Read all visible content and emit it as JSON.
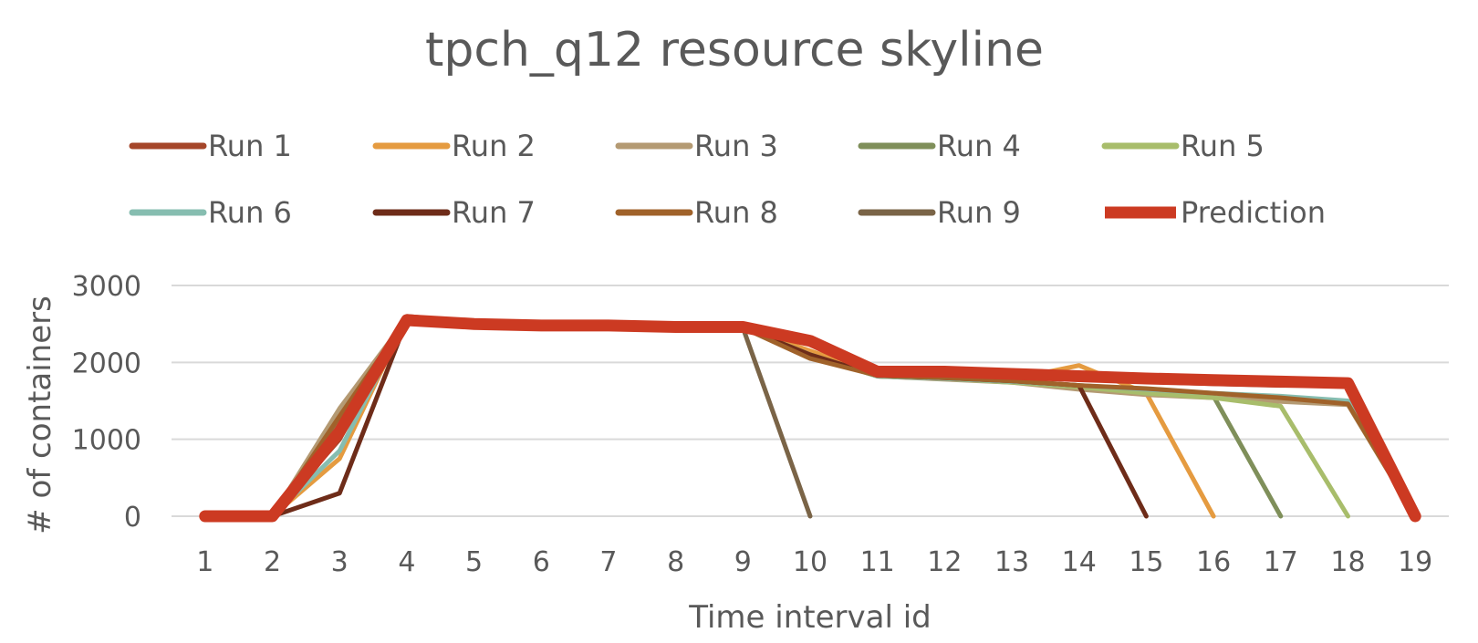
{
  "chart_data": {
    "type": "line",
    "title": "tpch_q12 resource skyline",
    "xlabel": "Time interval id",
    "ylabel": "# of containers",
    "categories": [
      "1",
      "2",
      "3",
      "4",
      "5",
      "6",
      "7",
      "8",
      "9",
      "10",
      "11",
      "12",
      "13",
      "14",
      "15",
      "16",
      "17",
      "18",
      "19"
    ],
    "yticks": [
      "0",
      "1000",
      "2000",
      "3000"
    ],
    "ylim": [
      0,
      3000
    ],
    "grid": true,
    "legend_position": "top",
    "series": [
      {
        "name": "Run 1",
        "color": "#a5462a",
        "values": [
          0,
          0,
          1000,
          2600,
          2520,
          2480,
          2480,
          2450,
          2450,
          2300,
          1880,
          1860,
          1830,
          1800,
          1750,
          1720,
          1700,
          1700,
          0
        ]
      },
      {
        "name": "Run 2",
        "color": "#e59b40",
        "values": [
          0,
          0,
          750,
          2580,
          2520,
          2480,
          2480,
          2450,
          2450,
          2150,
          1850,
          1800,
          1780,
          1960,
          1600,
          0,
          null,
          null,
          null
        ]
      },
      {
        "name": "Run 3",
        "color": "#b49a73",
        "values": [
          0,
          0,
          1400,
          2570,
          2510,
          2480,
          2480,
          2450,
          2450,
          2100,
          1820,
          1780,
          1740,
          1650,
          1580,
          1540,
          1490,
          1450,
          0
        ]
      },
      {
        "name": "Run 4",
        "color": "#7f8f5a",
        "values": [
          0,
          0,
          1200,
          2580,
          2510,
          2480,
          2480,
          2450,
          2450,
          2100,
          1820,
          1790,
          1750,
          1700,
          1640,
          1560,
          0,
          null,
          null
        ]
      },
      {
        "name": "Run 5",
        "color": "#a8bd6b",
        "values": [
          0,
          0,
          1150,
          2570,
          2510,
          2480,
          2480,
          2450,
          2450,
          2100,
          1820,
          1790,
          1740,
          1680,
          1600,
          1540,
          1430,
          0,
          null
        ]
      },
      {
        "name": "Run 6",
        "color": "#86bdb0",
        "values": [
          0,
          0,
          850,
          2560,
          2510,
          2480,
          2480,
          2450,
          2450,
          2100,
          1820,
          1790,
          1750,
          1700,
          1650,
          1600,
          1560,
          1500,
          0
        ]
      },
      {
        "name": "Run 7",
        "color": "#6e2c19",
        "values": [
          0,
          0,
          300,
          2550,
          2510,
          2480,
          2480,
          2450,
          2450,
          2100,
          1830,
          1800,
          1760,
          1700,
          0,
          null,
          null,
          null,
          null
        ]
      },
      {
        "name": "Run 8",
        "color": "#a0622a",
        "values": [
          0,
          0,
          1300,
          2570,
          2510,
          2480,
          2480,
          2450,
          2450,
          2050,
          1830,
          1800,
          1760,
          1700,
          1660,
          1600,
          1540,
          1460,
          0
        ]
      },
      {
        "name": "Run 9",
        "color": "#7a6447",
        "values": [
          0,
          0,
          1100,
          2570,
          2510,
          2480,
          2480,
          2450,
          2450,
          0,
          null,
          null,
          null,
          null,
          null,
          null,
          null,
          null,
          null
        ]
      },
      {
        "name": "Prediction",
        "color": "#cc3a22",
        "values": [
          0,
          0,
          1100,
          2550,
          2500,
          2480,
          2480,
          2460,
          2460,
          2280,
          1880,
          1880,
          1850,
          1820,
          1790,
          1770,
          1750,
          1730,
          0
        ]
      }
    ]
  }
}
